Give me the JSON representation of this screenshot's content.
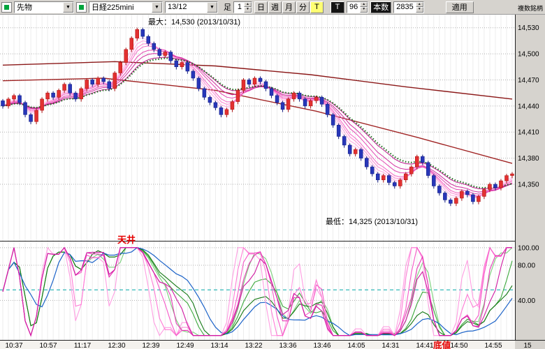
{
  "toolbar": {
    "category_select": "先物",
    "instrument_select": "日経225mini",
    "contract_select": "13/12",
    "bar_label": "足",
    "bar_value": "1",
    "period_buttons": [
      "日",
      "週",
      "月",
      "分"
    ],
    "tick_toggle": "T",
    "t_button": "T",
    "tick_count": "96",
    "bars_button": "本数",
    "bars_value": "2835",
    "apply_button": "適用",
    "multi_symbol": "複数銘柄"
  },
  "annotations": {
    "max_label": "最大：14,530 (2013/10/31)",
    "min_label": "最低：14,325 (2013/10/31)",
    "ceiling": "天井",
    "bottom": "底値"
  },
  "chart_data": {
    "type": "candlestick",
    "instrument": "日経225mini 13/12 1分足",
    "max": 14530,
    "max_date": "2013/10/31",
    "min": 14325,
    "min_date": "2013/10/31",
    "ylim": {
      "top": 14545,
      "bottom": 14285
    },
    "price_ticks": [
      {
        "v": 14530,
        "label": "14,530"
      },
      {
        "v": 14500,
        "label": "14,500"
      },
      {
        "v": 14470,
        "label": "14,470"
      },
      {
        "v": 14440,
        "label": "14,440"
      },
      {
        "v": 14410,
        "label": "14,410"
      },
      {
        "v": 14380,
        "label": "14,380"
      },
      {
        "v": 14350,
        "label": "14,350"
      }
    ],
    "time_labels": [
      "10:37",
      "10:57",
      "11:17",
      "12:30",
      "12:39",
      "12:49",
      "13:14",
      "13:22",
      "13:36",
      "13:46",
      "14:05",
      "14:31",
      "14:41",
      "14:50",
      "14:55",
      "15"
    ],
    "candle_colors": {
      "up": "#e23030",
      "up_stroke": "#aa1010",
      "down": "#2736b8",
      "down_stroke": "#101a80"
    },
    "candles": [
      [
        14446,
        14448,
        14437,
        14440
      ],
      [
        14440,
        14450,
        14437,
        14448
      ],
      [
        14448,
        14454,
        14445,
        14452
      ],
      [
        14452,
        14454,
        14441,
        14444
      ],
      [
        14444,
        14446,
        14427,
        14430
      ],
      [
        14430,
        14432,
        14419,
        14422
      ],
      [
        14422,
        14437,
        14419,
        14435
      ],
      [
        14435,
        14450,
        14432,
        14448
      ],
      [
        14448,
        14457,
        14445,
        14455
      ],
      [
        14455,
        14457,
        14447,
        14450
      ],
      [
        14450,
        14460,
        14447,
        14458
      ],
      [
        14458,
        14467,
        14455,
        14465
      ],
      [
        14465,
        14467,
        14452,
        14455
      ],
      [
        14455,
        14457,
        14445,
        14448
      ],
      [
        14448,
        14462,
        14445,
        14460
      ],
      [
        14460,
        14472,
        14457,
        14470
      ],
      [
        14470,
        14472,
        14462,
        14465
      ],
      [
        14465,
        14474,
        14462,
        14472
      ],
      [
        14472,
        14474,
        14465,
        14468
      ],
      [
        14468,
        14470,
        14457,
        14460
      ],
      [
        14460,
        14480,
        14457,
        14478
      ],
      [
        14478,
        14492,
        14475,
        14490
      ],
      [
        14490,
        14507,
        14487,
        14505
      ],
      [
        14505,
        14520,
        14502,
        14518
      ],
      [
        14518,
        14530,
        14515,
        14528
      ],
      [
        14528,
        14530,
        14517,
        14520
      ],
      [
        14520,
        14522,
        14509,
        14512
      ],
      [
        14512,
        14514,
        14502,
        14505
      ],
      [
        14505,
        14507,
        14495,
        14498
      ],
      [
        14498,
        14504,
        14495,
        14502
      ],
      [
        14502,
        14504,
        14489,
        14492
      ],
      [
        14492,
        14494,
        14482,
        14485
      ],
      [
        14485,
        14492,
        14482,
        14490
      ],
      [
        14490,
        14492,
        14477,
        14480
      ],
      [
        14480,
        14482,
        14469,
        14472
      ],
      [
        14472,
        14474,
        14457,
        14460
      ],
      [
        14460,
        14462,
        14447,
        14450
      ],
      [
        14450,
        14452,
        14441,
        14444
      ],
      [
        14444,
        14446,
        14435,
        14438
      ],
      [
        14438,
        14440,
        14427,
        14430
      ],
      [
        14430,
        14438,
        14427,
        14436
      ],
      [
        14436,
        14447,
        14433,
        14445
      ],
      [
        14445,
        14460,
        14442,
        14458
      ],
      [
        14458,
        14472,
        14455,
        14470
      ],
      [
        14470,
        14472,
        14462,
        14465
      ],
      [
        14465,
        14474,
        14462,
        14472
      ],
      [
        14472,
        14474,
        14465,
        14468
      ],
      [
        14468,
        14470,
        14457,
        14460
      ],
      [
        14460,
        14462,
        14449,
        14452
      ],
      [
        14452,
        14454,
        14441,
        14444
      ],
      [
        14444,
        14446,
        14433,
        14436
      ],
      [
        14436,
        14450,
        14433,
        14448
      ],
      [
        14448,
        14457,
        14445,
        14455
      ],
      [
        14455,
        14457,
        14445,
        14448
      ],
      [
        14448,
        14450,
        14437,
        14440
      ],
      [
        14440,
        14448,
        14437,
        14446
      ],
      [
        14446,
        14452,
        14443,
        14450
      ],
      [
        14450,
        14452,
        14439,
        14442
      ],
      [
        14442,
        14444,
        14427,
        14430
      ],
      [
        14430,
        14432,
        14415,
        14418
      ],
      [
        14418,
        14420,
        14402,
        14405
      ],
      [
        14405,
        14407,
        14392,
        14395
      ],
      [
        14395,
        14397,
        14382,
        14385
      ],
      [
        14385,
        14392,
        14382,
        14390
      ],
      [
        14390,
        14392,
        14377,
        14380
      ],
      [
        14380,
        14382,
        14367,
        14370
      ],
      [
        14370,
        14372,
        14359,
        14362
      ],
      [
        14362,
        14364,
        14352,
        14355
      ],
      [
        14355,
        14362,
        14352,
        14360
      ],
      [
        14360,
        14362,
        14349,
        14352
      ],
      [
        14352,
        14354,
        14345,
        14348
      ],
      [
        14348,
        14357,
        14345,
        14355
      ],
      [
        14355,
        14364,
        14352,
        14362
      ],
      [
        14362,
        14372,
        14359,
        14370
      ],
      [
        14370,
        14384,
        14367,
        14382
      ],
      [
        14382,
        14384,
        14372,
        14375
      ],
      [
        14375,
        14377,
        14357,
        14360
      ],
      [
        14360,
        14362,
        14345,
        14348
      ],
      [
        14348,
        14350,
        14337,
        14340
      ],
      [
        14340,
        14342,
        14329,
        14332
      ],
      [
        14332,
        14334,
        14325,
        14328
      ],
      [
        14328,
        14336,
        14325,
        14334
      ],
      [
        14334,
        14344,
        14331,
        14342
      ],
      [
        14342,
        14344,
        14335,
        14338
      ],
      [
        14338,
        14340,
        14327,
        14330
      ],
      [
        14330,
        14338,
        14327,
        14336
      ],
      [
        14336,
        14346,
        14333,
        14344
      ],
      [
        14344,
        14352,
        14341,
        14350
      ],
      [
        14350,
        14352,
        14343,
        14346
      ],
      [
        14346,
        14356,
        14343,
        14354
      ],
      [
        14354,
        14362,
        14351,
        14360
      ],
      [
        14360,
        14364,
        14357,
        14362
      ]
    ],
    "overlays": {
      "ema_ribbon": {
        "periods": [
          3,
          4,
          5,
          6,
          8,
          10,
          13
        ],
        "colors": [
          "#ffc3ea",
          "#ffa6e0",
          "#ff86d4",
          "#f468c6",
          "#e44ab4",
          "#d22da0",
          "#bb188c"
        ]
      },
      "dotted_ma": {
        "period": 14,
        "color": "#1c6e1c"
      },
      "trend_lines": [
        {
          "color": "#8b1818",
          "points": [
            [
              0,
              14487
            ],
            [
              20,
              14491
            ],
            [
              38,
              14486
            ],
            [
              55,
              14476
            ],
            [
              72,
              14462
            ],
            [
              91,
              14448
            ]
          ]
        },
        {
          "color": "#a02424",
          "points": [
            [
              0,
              14469
            ],
            [
              18,
              14472
            ],
            [
              38,
              14458
            ],
            [
              56,
              14434
            ],
            [
              74,
              14404
            ],
            [
              91,
              14374
            ]
          ]
        }
      ]
    },
    "sub_chart": {
      "type": "stochastic-fan",
      "ylim": {
        "top": 107,
        "bottom": -5
      },
      "ticks": [
        {
          "v": 100,
          "label": "100.00"
        },
        {
          "v": 80,
          "label": "80.00"
        },
        {
          "v": 40,
          "label": "40.00"
        }
      ],
      "midline": {
        "v": 52,
        "color": "#00a8a8"
      },
      "magenta_fan": {
        "periods": [
          5,
          7,
          9,
          11,
          13
        ],
        "smooth": 2,
        "colors": [
          "#ff9de2",
          "#ff7bd6",
          "#f659c8",
          "#e63ab6",
          "#d01aa2"
        ]
      },
      "green_fan": {
        "periods": [
          10,
          15,
          21
        ],
        "smooth": 3,
        "colors": [
          "#7bd07b",
          "#3aa83a",
          "#147814"
        ]
      },
      "blue_line": {
        "period": 28,
        "smooth": 5,
        "color": "#1b62c8"
      }
    }
  }
}
